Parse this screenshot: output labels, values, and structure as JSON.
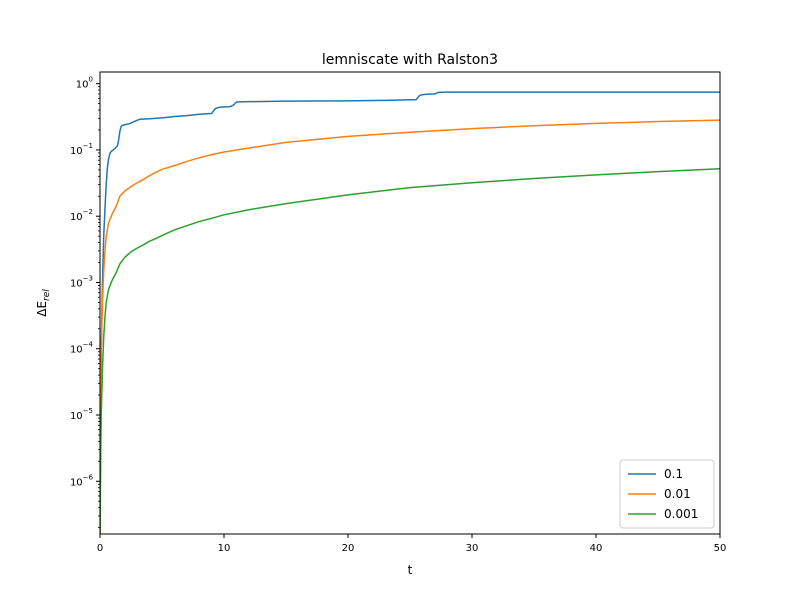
{
  "chart_data": {
    "type": "line",
    "title": "lemniscate with Ralston3",
    "xlabel": "t",
    "ylabel_main": "ΔE",
    "ylabel_sub": "rel",
    "xlim": [
      0,
      50
    ],
    "ylim": [
      1.6e-07,
      1.5
    ],
    "yscale": "log",
    "grid": false,
    "legend_position": "lower right",
    "x_ticks": [
      0,
      10,
      20,
      30,
      40,
      50
    ],
    "y_ticks": [
      {
        "value": 1e-06,
        "base": "10",
        "exp": "−6"
      },
      {
        "value": 1e-05,
        "base": "10",
        "exp": "−5"
      },
      {
        "value": 0.0001,
        "base": "10",
        "exp": "−4"
      },
      {
        "value": 0.001,
        "base": "10",
        "exp": "−3"
      },
      {
        "value": 0.01,
        "base": "10",
        "exp": "−2"
      },
      {
        "value": 0.1,
        "base": "10",
        "exp": "−1"
      },
      {
        "value": 1,
        "base": "10",
        "exp": "0"
      }
    ],
    "series": [
      {
        "name": "0.1",
        "color": "#1f77b4",
        "points": [
          [
            0,
            1.6e-07
          ],
          [
            0.1,
            0.0001
          ],
          [
            0.2,
            0.001
          ],
          [
            0.3,
            0.005
          ],
          [
            0.4,
            0.013
          ],
          [
            0.5,
            0.03
          ],
          [
            0.6,
            0.055
          ],
          [
            0.7,
            0.075
          ],
          [
            0.8,
            0.088
          ],
          [
            0.9,
            0.095
          ],
          [
            1.0,
            0.098
          ],
          [
            1.2,
            0.105
          ],
          [
            1.4,
            0.115
          ],
          [
            1.5,
            0.14
          ],
          [
            1.6,
            0.19
          ],
          [
            1.7,
            0.225
          ],
          [
            1.8,
            0.235
          ],
          [
            2.0,
            0.24
          ],
          [
            2.4,
            0.25
          ],
          [
            2.8,
            0.27
          ],
          [
            3.2,
            0.29
          ],
          [
            4,
            0.295
          ],
          [
            5,
            0.305
          ],
          [
            6,
            0.32
          ],
          [
            7,
            0.33
          ],
          [
            8,
            0.345
          ],
          [
            9,
            0.355
          ],
          [
            9.3,
            0.42
          ],
          [
            9.6,
            0.44
          ],
          [
            10.5,
            0.45
          ],
          [
            10.8,
            0.48
          ],
          [
            11,
            0.53
          ],
          [
            12,
            0.535
          ],
          [
            15,
            0.545
          ],
          [
            20,
            0.55
          ],
          [
            23,
            0.56
          ],
          [
            25.5,
            0.575
          ],
          [
            25.8,
            0.67
          ],
          [
            26.2,
            0.69
          ],
          [
            27,
            0.7
          ],
          [
            27.3,
            0.74
          ],
          [
            28,
            0.745
          ],
          [
            35,
            0.745
          ],
          [
            40,
            0.745
          ],
          [
            50,
            0.745
          ]
        ]
      },
      {
        "name": "0.01",
        "color": "#ff7f0e",
        "points": [
          [
            0,
            1.6e-07
          ],
          [
            0.05,
            2e-05
          ],
          [
            0.1,
            0.0001
          ],
          [
            0.2,
            0.0005
          ],
          [
            0.3,
            0.0015
          ],
          [
            0.4,
            0.003
          ],
          [
            0.5,
            0.005
          ],
          [
            0.7,
            0.008
          ],
          [
            1.0,
            0.011
          ],
          [
            1.3,
            0.014
          ],
          [
            1.6,
            0.02
          ],
          [
            2.0,
            0.024
          ],
          [
            2.5,
            0.028
          ],
          [
            3.0,
            0.032
          ],
          [
            3.5,
            0.036
          ],
          [
            4.0,
            0.041
          ],
          [
            4.5,
            0.046
          ],
          [
            5.0,
            0.051
          ],
          [
            6.0,
            0.058
          ],
          [
            7.0,
            0.067
          ],
          [
            8.0,
            0.076
          ],
          [
            9.0,
            0.085
          ],
          [
            10,
            0.093
          ],
          [
            12,
            0.107
          ],
          [
            15,
            0.13
          ],
          [
            20,
            0.16
          ],
          [
            25,
            0.185
          ],
          [
            30,
            0.21
          ],
          [
            35,
            0.232
          ],
          [
            40,
            0.252
          ],
          [
            45,
            0.268
          ],
          [
            50,
            0.282
          ]
        ]
      },
      {
        "name": "0.001",
        "color": "#2ca02c",
        "points": [
          [
            0,
            1.6e-07
          ],
          [
            0.05,
            2e-06
          ],
          [
            0.1,
            1e-05
          ],
          [
            0.2,
            5e-05
          ],
          [
            0.3,
            0.00015
          ],
          [
            0.4,
            0.0003
          ],
          [
            0.5,
            0.0005
          ],
          [
            0.7,
            0.0008
          ],
          [
            1.0,
            0.0011
          ],
          [
            1.3,
            0.0014
          ],
          [
            1.6,
            0.0019
          ],
          [
            2.0,
            0.0024
          ],
          [
            2.5,
            0.0029
          ],
          [
            3.0,
            0.0033
          ],
          [
            3.5,
            0.0037
          ],
          [
            4.0,
            0.0042
          ],
          [
            4.5,
            0.0046
          ],
          [
            5.0,
            0.0051
          ],
          [
            6.0,
            0.0062
          ],
          [
            7.0,
            0.0072
          ],
          [
            8.0,
            0.0083
          ],
          [
            9.0,
            0.0093
          ],
          [
            10,
            0.0105
          ],
          [
            12,
            0.0125
          ],
          [
            15,
            0.0155
          ],
          [
            20,
            0.021
          ],
          [
            25,
            0.027
          ],
          [
            30,
            0.032
          ],
          [
            35,
            0.037
          ],
          [
            40,
            0.042
          ],
          [
            45,
            0.047
          ],
          [
            50,
            0.052
          ]
        ]
      }
    ]
  }
}
